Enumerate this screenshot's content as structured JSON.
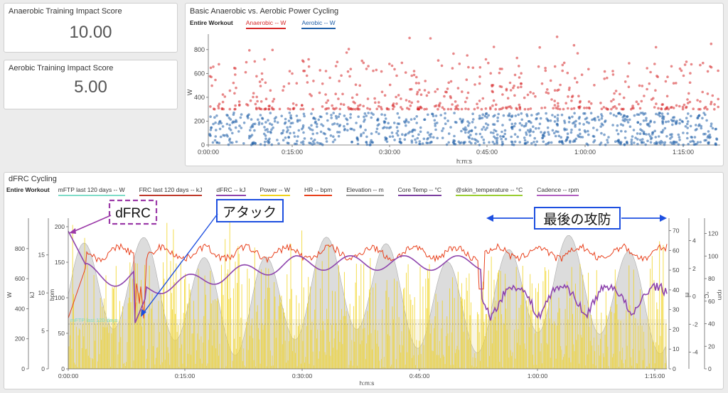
{
  "tiles": [
    {
      "title": "Anaerobic Training Impact Score",
      "value": "10.00"
    },
    {
      "title": "Aerobic Training Impact Score",
      "value": "5.00"
    }
  ],
  "colors": {
    "anaerobic": "#d62728",
    "aerobic": "#1f5fa8",
    "cp": "#7fdcc8",
    "frc": "#c0392b",
    "dfrc": "#8e44ad",
    "power": "#f0d21a",
    "hr": "#e8401c",
    "elevation": "#999999",
    "core_temp": "#7b3fa0",
    "skin_temp": "#9acd32",
    "cadence": "#b05fc0",
    "annotation_purple": "#9b3aa8",
    "annotation_blue": "#1d4fe0"
  },
  "scatter": {
    "title": "Basic Anaerobic vs. Aerobic Power Cycling",
    "legend_head": "Entire Workout",
    "legend": [
      {
        "label": "Anaerobic  -- W",
        "color": "#d62728"
      },
      {
        "label": "Aerobic  -- W",
        "color": "#1f5fa8"
      }
    ],
    "y_axis_label": "W",
    "x_axis_label": "h:m:s",
    "y_ticks": [
      "0",
      "200",
      "400",
      "600",
      "800"
    ],
    "x_ticks": [
      "0:00:00",
      "0:15:00",
      "0:30:00",
      "0:45:00",
      "1:00:00",
      "1:15:00"
    ]
  },
  "dfrc": {
    "title": "dFRC Cycling",
    "legend_head": "Entire Workout",
    "legend": [
      {
        "label": "mFTP last 120 days  -- W",
        "color": "#7fdcc8"
      },
      {
        "label": "FRC last 120 days  -- kJ",
        "color": "#c0392b"
      },
      {
        "label": "dFRC  -- kJ",
        "color": "#8e44ad"
      },
      {
        "label": "Power  -- W",
        "color": "#f0d21a"
      },
      {
        "label": "HR  -- bpm",
        "color": "#e8401c"
      },
      {
        "label": "Elevation  -- m",
        "color": "#999999"
      },
      {
        "label": "Core Temp  -- °C",
        "color": "#7b3fa0"
      },
      {
        "label": "@skin_temperature  -- °C",
        "color": "#9acd32"
      },
      {
        "label": "Cadence  -- rpm",
        "color": "#b05fc0"
      }
    ],
    "axes": {
      "w": {
        "label": "W",
        "ticks": [
          "0",
          "200",
          "400",
          "600",
          "800"
        ]
      },
      "kj": {
        "label": "kJ",
        "ticks": [
          "0",
          "5",
          "10",
          "15"
        ]
      },
      "bpm": {
        "label": "bpm",
        "ticks": [
          "0",
          "50",
          "100",
          "150",
          "200"
        ]
      },
      "m": {
        "label": "m",
        "ticks": [
          "0",
          "10",
          "20",
          "30",
          "40",
          "50",
          "60",
          "70"
        ]
      },
      "c": {
        "label": "°C",
        "ticks": [
          "-4",
          "-2",
          "0",
          "2",
          "4"
        ]
      },
      "rpm": {
        "label": "rpm",
        "ticks": [
          "0",
          "20",
          "40",
          "60",
          "80",
          "100",
          "120"
        ]
      }
    },
    "x_axis_label": "h:m:s",
    "x_ticks": [
      "0:00:00",
      "0:15:00",
      "0:30:00",
      "0:45:00",
      "1:00:00",
      "1:15:00"
    ],
    "cp_line_label": "mFTP last 120 days",
    "annotations": {
      "dfrc": "dFRC",
      "attack": "アタック",
      "final": "最後の攻防"
    }
  }
}
